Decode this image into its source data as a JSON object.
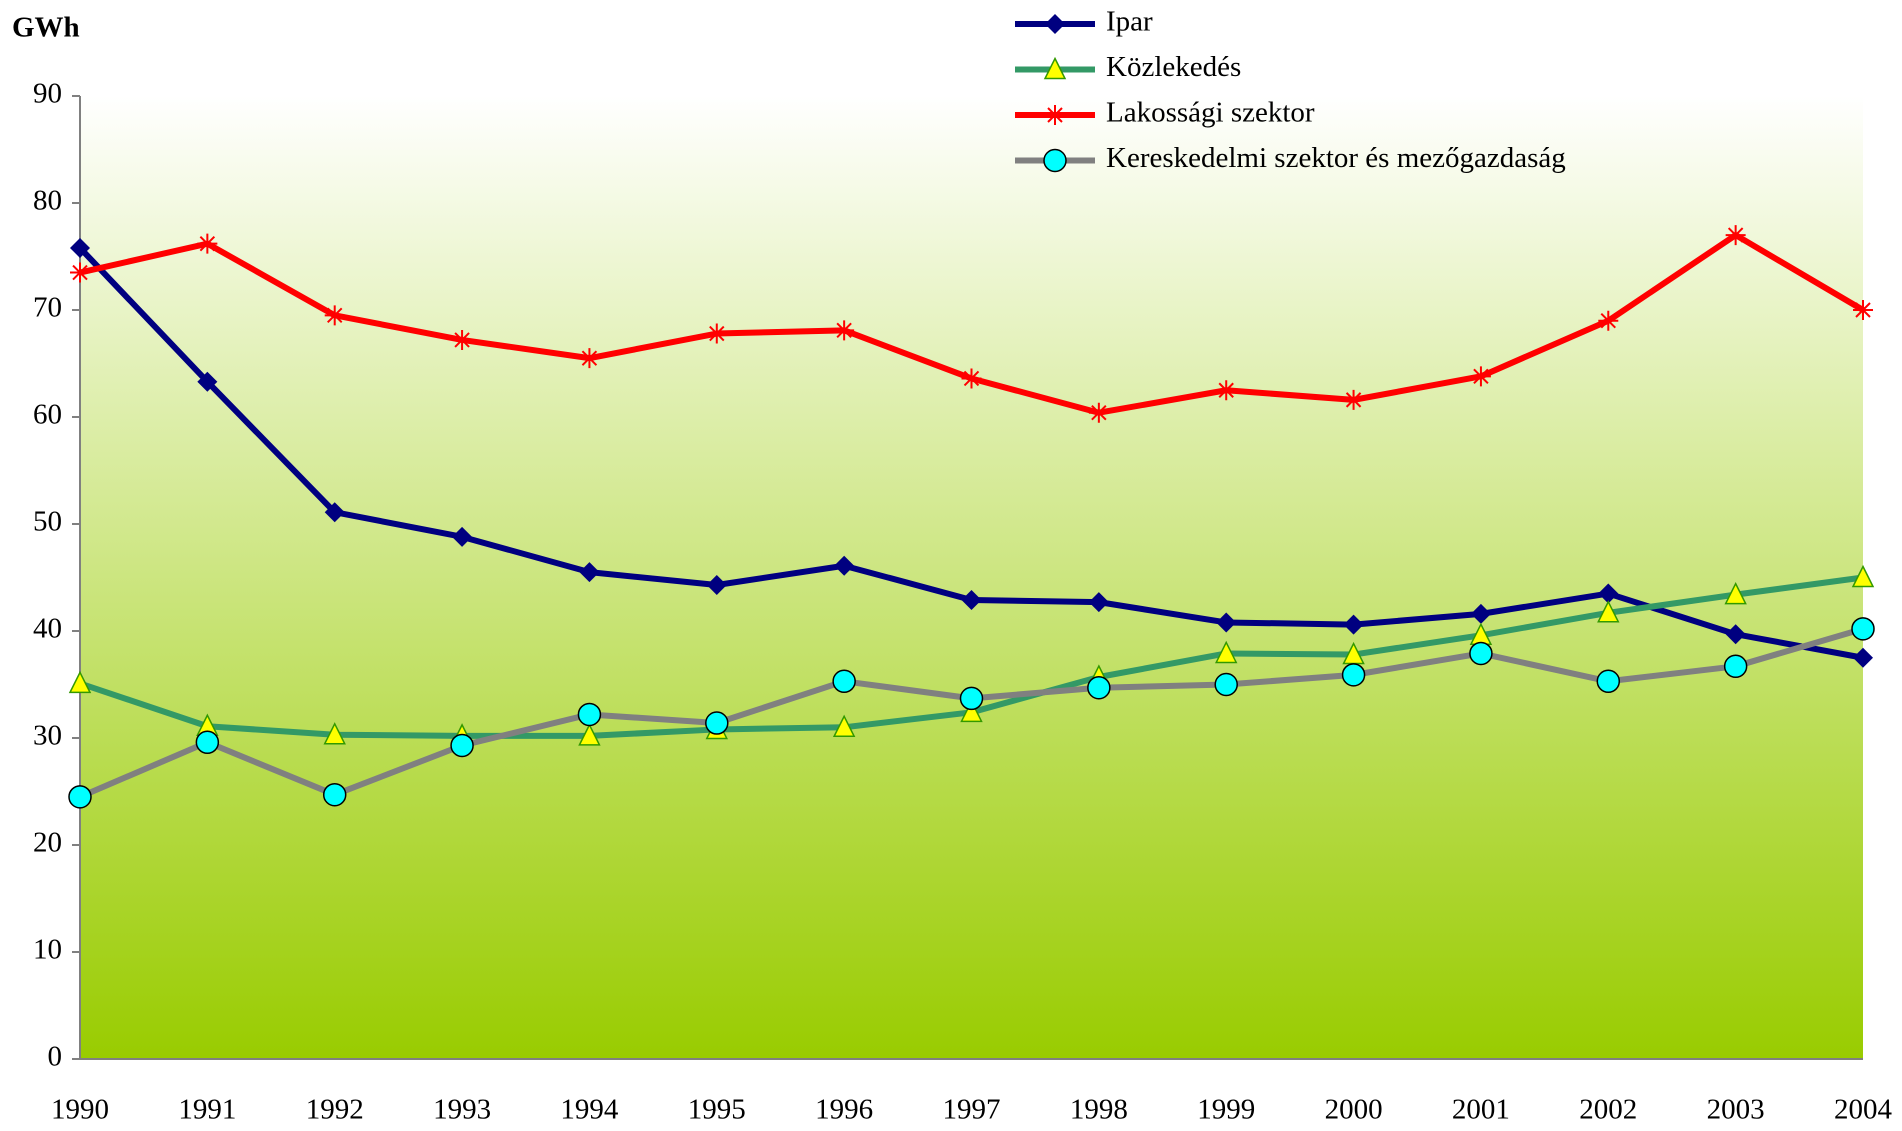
{
  "chart_data": {
    "type": "line",
    "y_label": "GWh",
    "categories": [
      "1990",
      "1991",
      "1992",
      "1993",
      "1994",
      "1995",
      "1996",
      "1997",
      "1998",
      "1999",
      "2000",
      "2001",
      "2002",
      "2003",
      "2004"
    ],
    "series": [
      {
        "name": "Ipar",
        "color": "#000080",
        "marker": "diamond",
        "marker_color": "#000080",
        "values": [
          75.8,
          63.3,
          51.1,
          48.8,
          45.5,
          44.3,
          46.1,
          42.9,
          42.7,
          40.8,
          40.6,
          41.6,
          43.5,
          39.7,
          37.5
        ]
      },
      {
        "name": "Közlekedés",
        "color": "#339966",
        "marker": "triangle",
        "marker_color": "#ffff00",
        "values": [
          35.1,
          31.1,
          30.3,
          30.2,
          30.2,
          30.8,
          31.0,
          32.4,
          35.7,
          37.9,
          37.8,
          39.6,
          41.7,
          43.4,
          45.0
        ]
      },
      {
        "name": "Lakossági szektor",
        "color": "#ff0000",
        "marker": "star",
        "marker_color": "#ff0000",
        "values": [
          73.5,
          76.2,
          69.5,
          67.2,
          65.5,
          67.8,
          68.1,
          63.6,
          60.4,
          62.5,
          61.6,
          63.8,
          69.0,
          77.0,
          70.0
        ]
      },
      {
        "name": "Kereskedelmi szektor és mezőgazdaság",
        "color": "#808080",
        "marker": "circle",
        "marker_color": "#00ffff",
        "values": [
          24.5,
          29.6,
          24.7,
          29.3,
          32.2,
          31.4,
          35.3,
          33.7,
          34.7,
          35.0,
          35.9,
          37.9,
          35.3,
          36.7,
          40.2
        ]
      }
    ],
    "ylim": [
      0,
      90
    ],
    "yticks": [
      0,
      10,
      20,
      30,
      40,
      50,
      60,
      70,
      80,
      90
    ],
    "background_gradient": [
      "#ffffff",
      "#99cc00"
    ],
    "legend": "top-right"
  }
}
